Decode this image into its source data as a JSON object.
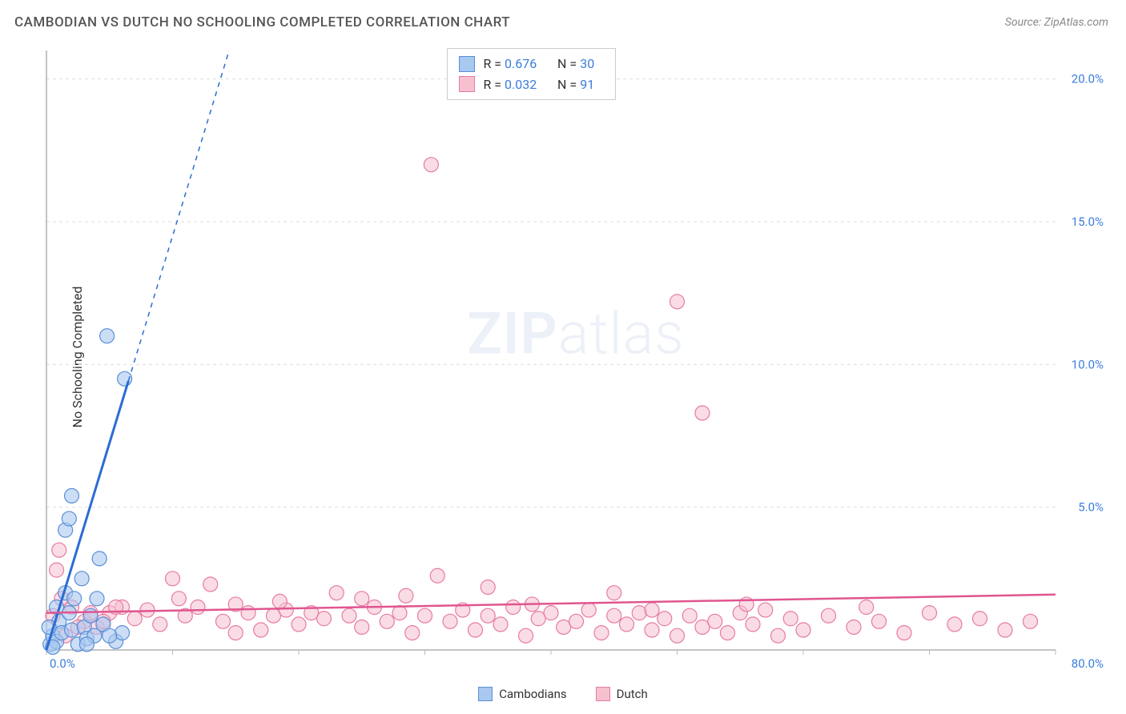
{
  "title": "CAMBODIAN VS DUTCH NO SCHOOLING COMPLETED CORRELATION CHART",
  "source_label": "Source: ZipAtlas.com",
  "y_axis_label": "No Schooling Completed",
  "watermark_zip": "ZIP",
  "watermark_atlas": "atlas",
  "chart": {
    "type": "scatter",
    "background_color": "#ffffff",
    "grid_color": "#dddddd",
    "axis_color": "#888888",
    "tick_color": "#bbbbbb",
    "x": {
      "min": 0,
      "max": 80,
      "ticks": [
        0,
        10,
        20,
        30,
        40,
        50,
        60,
        70,
        80
      ],
      "origin_label": "0.0%",
      "max_label": "80.0%",
      "label_color": "#3b7ddd",
      "label_fontsize": 15
    },
    "y": {
      "min": 0,
      "max": 21,
      "ticks": [
        5,
        10,
        15,
        20
      ],
      "tick_labels": [
        "5.0%",
        "10.0%",
        "15.0%",
        "20.0%"
      ],
      "label_color": "#3b7ddd",
      "label_fontsize": 15
    },
    "series": [
      {
        "name": "Cambodians",
        "color_fill": "#a8c8f0",
        "color_stroke": "#5a8fd6",
        "marker_radius": 9,
        "marker_opacity": 0.6,
        "trendline_color": "#2b6cd4",
        "trendline_width": 3,
        "trendline_dash_after_x": 6.5,
        "trend_slope": 1.45,
        "trend_intercept": 0,
        "stats": {
          "R": "0.676",
          "N": "30"
        },
        "points": [
          [
            0.3,
            0.2
          ],
          [
            0.5,
            0.5
          ],
          [
            0.8,
            0.3
          ],
          [
            1.0,
            1.0
          ],
          [
            1.2,
            0.6
          ],
          [
            1.5,
            2.0
          ],
          [
            1.8,
            1.3
          ],
          [
            2.0,
            0.7
          ],
          [
            2.2,
            1.8
          ],
          [
            2.5,
            0.2
          ],
          [
            2.8,
            2.5
          ],
          [
            3.0,
            0.8
          ],
          [
            3.2,
            0.4
          ],
          [
            3.5,
            1.2
          ],
          [
            3.8,
            0.5
          ],
          [
            4.0,
            1.8
          ],
          [
            1.5,
            4.2
          ],
          [
            1.8,
            4.6
          ],
          [
            4.2,
            3.2
          ],
          [
            2.0,
            5.4
          ],
          [
            5.5,
            0.3
          ],
          [
            6.0,
            0.6
          ],
          [
            3.2,
            0.2
          ],
          [
            0.5,
            0.1
          ],
          [
            4.5,
            0.9
          ],
          [
            5.0,
            0.5
          ],
          [
            4.8,
            11.0
          ],
          [
            6.2,
            9.5
          ],
          [
            0.2,
            0.8
          ],
          [
            0.8,
            1.5
          ]
        ]
      },
      {
        "name": "Dutch",
        "color_fill": "#f6c0cf",
        "color_stroke": "#e77ba3",
        "marker_radius": 9,
        "marker_opacity": 0.55,
        "trendline_color": "#e05590",
        "trendline_width": 2.5,
        "trend_slope": 0.008,
        "trend_intercept": 1.3,
        "stats": {
          "R": "0.032",
          "N": "91"
        },
        "points": [
          [
            0.5,
            1.2
          ],
          [
            1.0,
            3.5
          ],
          [
            2.0,
            1.5
          ],
          [
            3.0,
            1.0
          ],
          [
            4.0,
            0.8
          ],
          [
            5.0,
            1.3
          ],
          [
            6.0,
            1.5
          ],
          [
            7.0,
            1.1
          ],
          [
            8.0,
            1.4
          ],
          [
            9.0,
            0.9
          ],
          [
            10.0,
            2.5
          ],
          [
            11.0,
            1.2
          ],
          [
            12.0,
            1.5
          ],
          [
            13.0,
            2.3
          ],
          [
            14.0,
            1.0
          ],
          [
            15.0,
            1.6
          ],
          [
            16.0,
            1.3
          ],
          [
            17.0,
            0.7
          ],
          [
            18.0,
            1.2
          ],
          [
            19.0,
            1.4
          ],
          [
            20.0,
            0.9
          ],
          [
            21.0,
            1.3
          ],
          [
            22.0,
            1.1
          ],
          [
            23.0,
            2.0
          ],
          [
            24.0,
            1.2
          ],
          [
            25.0,
            0.8
          ],
          [
            26.0,
            1.5
          ],
          [
            27.0,
            1.0
          ],
          [
            28.0,
            1.3
          ],
          [
            29.0,
            0.6
          ],
          [
            30.0,
            1.2
          ],
          [
            31.0,
            2.6
          ],
          [
            32.0,
            1.0
          ],
          [
            33.0,
            1.4
          ],
          [
            34.0,
            0.7
          ],
          [
            35.0,
            1.2
          ],
          [
            36.0,
            0.9
          ],
          [
            37.0,
            1.5
          ],
          [
            38.0,
            0.5
          ],
          [
            39.0,
            1.1
          ],
          [
            40.0,
            1.3
          ],
          [
            41.0,
            0.8
          ],
          [
            42.0,
            1.0
          ],
          [
            43.0,
            1.4
          ],
          [
            44.0,
            0.6
          ],
          [
            45.0,
            1.2
          ],
          [
            46.0,
            0.9
          ],
          [
            47.0,
            1.3
          ],
          [
            48.0,
            0.7
          ],
          [
            49.0,
            1.1
          ],
          [
            50.0,
            0.5
          ],
          [
            51.0,
            1.2
          ],
          [
            52.0,
            0.8
          ],
          [
            53.0,
            1.0
          ],
          [
            54.0,
            0.6
          ],
          [
            55.0,
            1.3
          ],
          [
            56.0,
            0.9
          ],
          [
            57.0,
            1.4
          ],
          [
            58.0,
            0.5
          ],
          [
            59.0,
            1.1
          ],
          [
            60.0,
            0.7
          ],
          [
            62.0,
            1.2
          ],
          [
            64.0,
            0.8
          ],
          [
            66.0,
            1.0
          ],
          [
            68.0,
            0.6
          ],
          [
            70.0,
            1.3
          ],
          [
            72.0,
            0.9
          ],
          [
            74.0,
            1.1
          ],
          [
            76.0,
            0.7
          ],
          [
            78.0,
            1.0
          ],
          [
            30.5,
            17.0
          ],
          [
            50.0,
            12.2
          ],
          [
            52.0,
            8.3
          ],
          [
            0.8,
            2.8
          ],
          [
            1.2,
            1.8
          ],
          [
            1.5,
            0.5
          ],
          [
            2.5,
            0.8
          ],
          [
            3.5,
            1.3
          ],
          [
            4.5,
            1.0
          ],
          [
            5.5,
            1.5
          ],
          [
            65.0,
            1.5
          ],
          [
            45.0,
            2.0
          ],
          [
            35.0,
            2.2
          ],
          [
            25.0,
            1.8
          ],
          [
            15.0,
            0.6
          ],
          [
            10.5,
            1.8
          ],
          [
            55.5,
            1.6
          ],
          [
            48.0,
            1.4
          ],
          [
            38.5,
            1.6
          ],
          [
            28.5,
            1.9
          ],
          [
            18.5,
            1.7
          ]
        ]
      }
    ]
  },
  "legend_bottom": [
    {
      "label": "Cambodians",
      "fill": "#a8c8f0",
      "stroke": "#5a8fd6"
    },
    {
      "label": "Dutch",
      "fill": "#f6c0cf",
      "stroke": "#e77ba3"
    }
  ]
}
